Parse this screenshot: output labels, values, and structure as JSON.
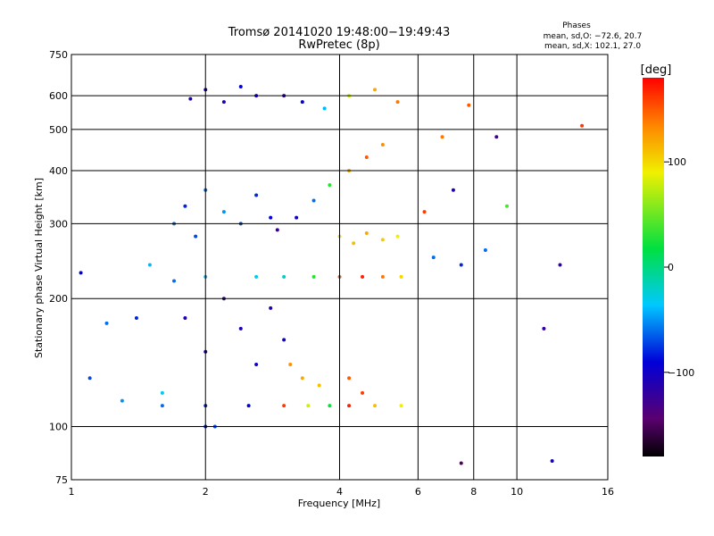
{
  "chart_data": {
    "type": "scatter",
    "title": "Tromsø 20141020 19:48:00−19:49:43",
    "subtitle": "RwPretec (8p)",
    "stats": {
      "heading": "Phases",
      "line1": "mean, sd,O: −72.6, 20.7",
      "line2": "mean, sd,X: 102.1, 27.0"
    },
    "xlabel": "Frequency [MHz]",
    "ylabel": "Stationary phase Virtual Height [km]",
    "xscale": "log",
    "yscale": "log",
    "xlim": [
      1,
      16
    ],
    "ylim": [
      75,
      750
    ],
    "xticks": [
      1,
      2,
      4,
      6,
      8,
      10,
      16
    ],
    "xtick_labels": [
      "1",
      "2",
      "4",
      "6",
      "8",
      "10",
      "16"
    ],
    "yticks": [
      75,
      100,
      200,
      300,
      400,
      500,
      600,
      750
    ],
    "ytick_labels": [
      "75",
      "100",
      "200",
      "300",
      "400",
      "500",
      "600",
      "750"
    ],
    "grid": true,
    "colorbar": {
      "label": "[deg]",
      "range": [
        -180,
        180
      ],
      "ticks": [
        100,
        0,
        -100
      ],
      "tick_labels": [
        "100",
        "0",
        "−100"
      ],
      "colormap": "rainbow (black → purple → blue → cyan → green → yellow → red)"
    },
    "series": [
      {
        "values": [
          [
            1.05,
            230,
            -90
          ],
          [
            1.1,
            130,
            -70
          ],
          [
            1.2,
            175,
            -60
          ],
          [
            1.3,
            115,
            -50
          ],
          [
            1.4,
            180,
            -80
          ],
          [
            1.5,
            240,
            -40
          ],
          [
            1.6,
            120,
            -30
          ],
          [
            1.7,
            220,
            -60
          ]
        ]
      },
      {
        "values": [
          [
            1.7,
            300,
            -60
          ],
          [
            1.8,
            330,
            -80
          ],
          [
            1.9,
            280,
            -70
          ],
          [
            2.0,
            360,
            -60
          ],
          [
            2.2,
            320,
            -50
          ],
          [
            2.4,
            300,
            -70
          ],
          [
            2.6,
            350,
            -80
          ],
          [
            2.8,
            310,
            -90
          ]
        ]
      },
      {
        "values": [
          [
            1.85,
            590,
            -110
          ],
          [
            2.0,
            620,
            -100
          ],
          [
            2.2,
            580,
            -110
          ],
          [
            2.4,
            630,
            -90
          ],
          [
            2.6,
            600,
            -100
          ]
        ]
      },
      {
        "values": [
          [
            1.8,
            180,
            -110
          ],
          [
            2.0,
            150,
            -100
          ],
          [
            2.2,
            200,
            -120
          ],
          [
            2.4,
            170,
            -110
          ],
          [
            2.6,
            140,
            -100
          ],
          [
            2.8,
            190,
            -110
          ],
          [
            3.0,
            160,
            -100
          ]
        ]
      },
      {
        "values": [
          [
            2.9,
            290,
            -120
          ],
          [
            3.2,
            310,
            -100
          ],
          [
            3.5,
            340,
            -60
          ],
          [
            3.8,
            370,
            30
          ],
          [
            4.2,
            400,
            120
          ],
          [
            4.6,
            430,
            150
          ],
          [
            5.0,
            460,
            130
          ]
        ]
      },
      {
        "values": [
          [
            3.0,
            600,
            -120
          ],
          [
            3.3,
            580,
            -90
          ],
          [
            3.7,
            560,
            -40
          ],
          [
            4.2,
            600,
            80
          ],
          [
            4.8,
            620,
            120
          ],
          [
            5.4,
            580,
            140
          ]
        ]
      },
      {
        "values": [
          [
            4.0,
            280,
            100
          ],
          [
            4.3,
            270,
            110
          ],
          [
            4.6,
            285,
            120
          ],
          [
            5.0,
            275,
            105
          ],
          [
            5.4,
            280,
            90
          ]
        ]
      },
      {
        "values": [
          [
            2.0,
            225,
            -40
          ],
          [
            2.6,
            225,
            -30
          ],
          [
            3.0,
            225,
            -20
          ],
          [
            3.5,
            225,
            30
          ],
          [
            4.0,
            225,
            150
          ],
          [
            4.5,
            225,
            170
          ],
          [
            5.0,
            225,
            140
          ],
          [
            5.5,
            225,
            100
          ]
        ]
      },
      {
        "values": [
          [
            1.6,
            112,
            -60
          ],
          [
            2.0,
            112,
            -80
          ],
          [
            2.5,
            112,
            -90
          ],
          [
            3.0,
            112,
            160
          ],
          [
            3.4,
            112,
            80
          ],
          [
            3.8,
            112,
            20
          ],
          [
            4.2,
            112,
            170
          ],
          [
            4.8,
            112,
            110
          ],
          [
            5.5,
            112,
            90
          ]
        ]
      },
      {
        "values": [
          [
            3.1,
            140,
            130
          ],
          [
            3.3,
            130,
            120
          ],
          [
            3.6,
            125,
            110
          ],
          [
            4.2,
            130,
            150
          ],
          [
            4.5,
            120,
            160
          ]
        ]
      },
      {
        "values": [
          [
            6.2,
            320,
            160
          ],
          [
            6.5,
            250,
            -60
          ],
          [
            6.8,
            480,
            140
          ],
          [
            7.2,
            360,
            -110
          ],
          [
            7.5,
            240,
            -80
          ],
          [
            7.8,
            570,
            150
          ],
          [
            8.5,
            260,
            -60
          ],
          [
            9.0,
            480,
            -130
          ],
          [
            9.5,
            330,
            40
          ],
          [
            11.5,
            170,
            -120
          ],
          [
            12.5,
            240,
            -120
          ],
          [
            14.0,
            510,
            160
          ]
        ]
      },
      {
        "values": [
          [
            2.0,
            100,
            -80
          ],
          [
            2.1,
            100,
            -70
          ],
          [
            7.5,
            82,
            -150
          ],
          [
            12.0,
            83,
            -100
          ]
        ]
      }
    ]
  }
}
